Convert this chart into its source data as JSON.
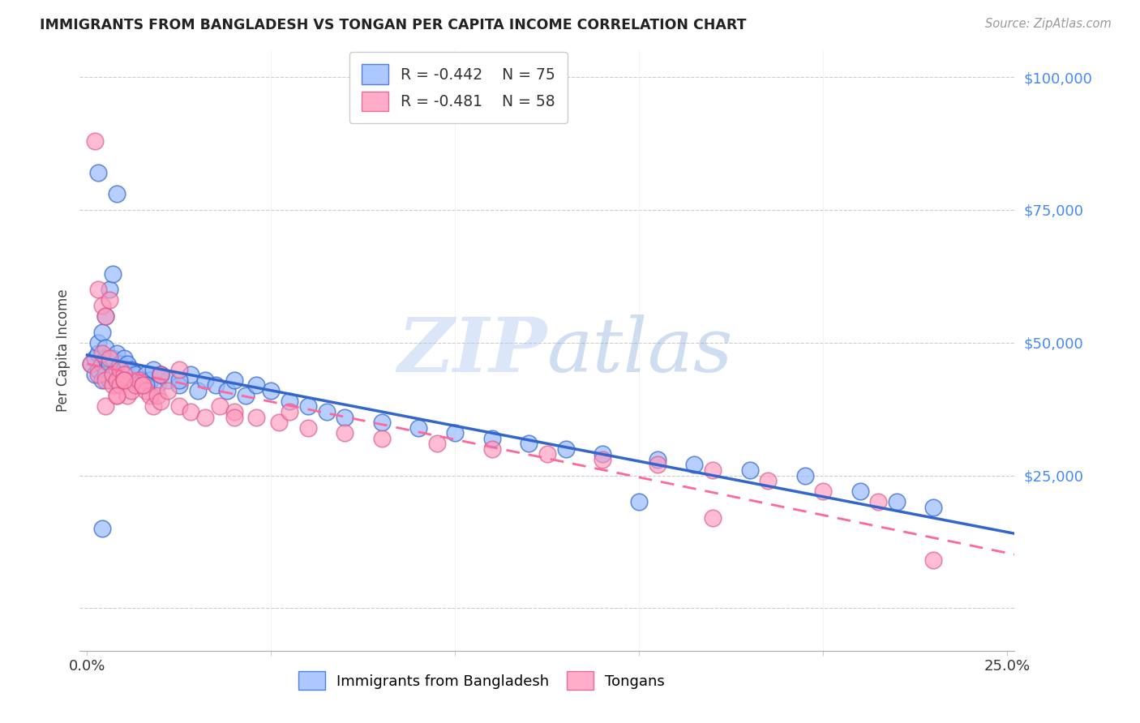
{
  "title": "IMMIGRANTS FROM BANGLADESH VS TONGAN PER CAPITA INCOME CORRELATION CHART",
  "source": "Source: ZipAtlas.com",
  "ylabel": "Per Capita Income",
  "legend_blue_r": "R = -0.442",
  "legend_blue_n": "N = 75",
  "legend_pink_r": "R = -0.481",
  "legend_pink_n": "N = 58",
  "blue_color": "#99bbff",
  "pink_color": "#ff99bb",
  "trendline_blue_color": "#3366cc",
  "trendline_pink_color": "#ff6699",
  "watermark_color": "#c8d8f8",
  "ytick_color": "#4488ff",
  "grid_color": "#cccccc",
  "blue_points_x": [
    0.001,
    0.002,
    0.002,
    0.003,
    0.003,
    0.003,
    0.004,
    0.004,
    0.004,
    0.005,
    0.005,
    0.005,
    0.005,
    0.006,
    0.006,
    0.006,
    0.007,
    0.007,
    0.007,
    0.008,
    0.008,
    0.008,
    0.009,
    0.009,
    0.01,
    0.01,
    0.01,
    0.011,
    0.011,
    0.012,
    0.012,
    0.013,
    0.014,
    0.015,
    0.016,
    0.017,
    0.018,
    0.019,
    0.02,
    0.022,
    0.025,
    0.028,
    0.03,
    0.032,
    0.035,
    0.038,
    0.04,
    0.043,
    0.046,
    0.05,
    0.055,
    0.06,
    0.065,
    0.07,
    0.08,
    0.09,
    0.1,
    0.11,
    0.12,
    0.13,
    0.14,
    0.155,
    0.165,
    0.18,
    0.195,
    0.21,
    0.22,
    0.23,
    0.016,
    0.02,
    0.025,
    0.008,
    0.004,
    0.003,
    0.15
  ],
  "blue_points_y": [
    46000,
    44000,
    47000,
    45000,
    48000,
    50000,
    43000,
    46000,
    52000,
    44000,
    47000,
    49000,
    55000,
    43000,
    46000,
    60000,
    44000,
    47000,
    63000,
    43000,
    45000,
    48000,
    44000,
    46000,
    43000,
    45000,
    47000,
    44000,
    46000,
    43000,
    45000,
    44000,
    42000,
    43000,
    44000,
    43000,
    45000,
    42000,
    44000,
    43000,
    42000,
    44000,
    41000,
    43000,
    42000,
    41000,
    43000,
    40000,
    42000,
    41000,
    39000,
    38000,
    37000,
    36000,
    35000,
    34000,
    33000,
    32000,
    31000,
    30000,
    29000,
    28000,
    27000,
    26000,
    25000,
    22000,
    20000,
    19000,
    42000,
    44000,
    43000,
    78000,
    15000,
    82000,
    20000
  ],
  "pink_points_x": [
    0.001,
    0.002,
    0.003,
    0.003,
    0.004,
    0.004,
    0.005,
    0.005,
    0.006,
    0.006,
    0.007,
    0.007,
    0.008,
    0.008,
    0.009,
    0.009,
    0.01,
    0.01,
    0.011,
    0.012,
    0.013,
    0.014,
    0.015,
    0.016,
    0.017,
    0.018,
    0.019,
    0.02,
    0.022,
    0.025,
    0.028,
    0.032,
    0.036,
    0.04,
    0.046,
    0.052,
    0.06,
    0.07,
    0.08,
    0.095,
    0.11,
    0.125,
    0.14,
    0.155,
    0.17,
    0.185,
    0.2,
    0.215,
    0.005,
    0.008,
    0.01,
    0.015,
    0.02,
    0.025,
    0.04,
    0.055,
    0.17,
    0.23
  ],
  "pink_points_y": [
    46000,
    88000,
    44000,
    60000,
    57000,
    48000,
    55000,
    43000,
    58000,
    47000,
    42000,
    44000,
    43000,
    40000,
    45000,
    42000,
    44000,
    43000,
    40000,
    41000,
    42000,
    43000,
    42000,
    41000,
    40000,
    38000,
    40000,
    39000,
    41000,
    38000,
    37000,
    36000,
    38000,
    37000,
    36000,
    35000,
    34000,
    33000,
    32000,
    31000,
    30000,
    29000,
    28000,
    27000,
    26000,
    24000,
    22000,
    20000,
    38000,
    40000,
    43000,
    42000,
    44000,
    45000,
    36000,
    37000,
    17000,
    9000
  ]
}
